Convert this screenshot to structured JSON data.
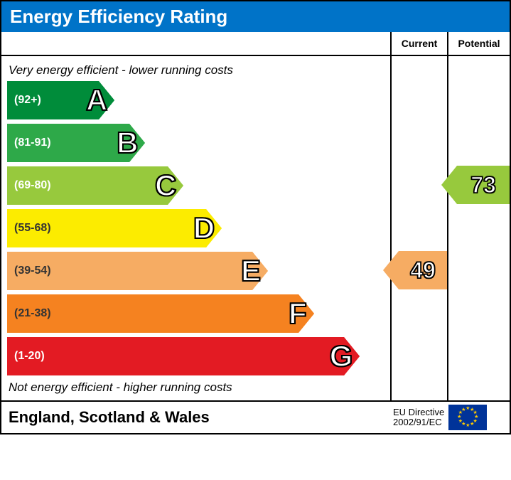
{
  "title": "Energy Efficiency Rating",
  "columns": {
    "current": "Current",
    "potential": "Potential"
  },
  "captions": {
    "top": "Very energy efficient - lower running costs",
    "bottom": "Not energy efficient - higher running costs"
  },
  "bands": [
    {
      "letter": "A",
      "range": "(92+)",
      "color": "#008c3a",
      "width_pct": 24,
      "range_color": "#ffffff"
    },
    {
      "letter": "B",
      "range": "(81-91)",
      "color": "#2ea949",
      "width_pct": 32,
      "range_color": "#ffffff"
    },
    {
      "letter": "C",
      "range": "(69-80)",
      "color": "#97c93d",
      "width_pct": 42,
      "range_color": "#ffffff"
    },
    {
      "letter": "D",
      "range": "(55-68)",
      "color": "#fcec00",
      "width_pct": 52,
      "range_color": "#333333"
    },
    {
      "letter": "E",
      "range": "(39-54)",
      "color": "#f6ac63",
      "width_pct": 64,
      "range_color": "#333333"
    },
    {
      "letter": "F",
      "range": "(21-38)",
      "color": "#f58220",
      "width_pct": 76,
      "range_color": "#333333"
    },
    {
      "letter": "G",
      "range": "(1-20)",
      "color": "#e31b23",
      "width_pct": 88,
      "range_color": "#ffffff"
    }
  ],
  "band_row_height": 60,
  "current": {
    "value": "49",
    "band_index": 4,
    "color": "#f6ac63"
  },
  "potential": {
    "value": "73",
    "band_index": 2,
    "color": "#97c93d"
  },
  "footer": {
    "region": "England, Scotland & Wales",
    "directive_line1": "EU Directive",
    "directive_line2": "2002/91/EC"
  },
  "colors": {
    "title_bg": "#0073c8",
    "border": "#000000",
    "background": "#ffffff",
    "eu_flag_bg": "#003399",
    "eu_flag_star": "#ffcc00"
  }
}
